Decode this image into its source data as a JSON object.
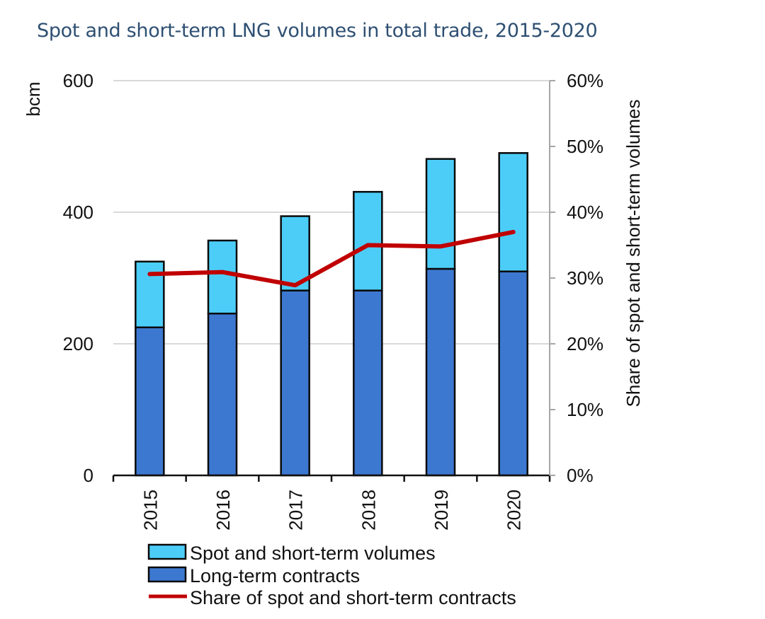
{
  "chart_data": {
    "type": "bar",
    "title": "Spot and short-term LNG volumes in total trade, 2015-2020",
    "categories": [
      "2015",
      "2016",
      "2017",
      "2018",
      "2019",
      "2020"
    ],
    "series": [
      {
        "name": "Long-term contracts",
        "kind": "stacked-bar",
        "axis": "left",
        "color": "#3d78d0",
        "values": [
          225,
          246,
          281,
          281,
          314,
          310
        ]
      },
      {
        "name": "Spot and short-term volumes",
        "kind": "stacked-bar",
        "axis": "left",
        "color": "#4ccdf8",
        "values": [
          100,
          111,
          113,
          150,
          167,
          180
        ]
      },
      {
        "name": "Share of spot and short-term contracts",
        "kind": "line",
        "axis": "right",
        "color": "#c00000",
        "values": [
          30.6,
          30.9,
          28.9,
          35.0,
          34.8,
          37.0
        ]
      }
    ],
    "left_axis": {
      "label": "bcm",
      "ylim": [
        0,
        600
      ],
      "ticks": [
        "0",
        "200",
        "400",
        "600"
      ],
      "tick_values": [
        0,
        200,
        400,
        600
      ]
    },
    "right_axis": {
      "label": "Share of spot and short-term volumes",
      "ylim": [
        0,
        60
      ],
      "ticks": [
        "0%",
        "10%",
        "20%",
        "30%",
        "40%",
        "50%",
        "60%"
      ],
      "tick_values": [
        0,
        10,
        20,
        30,
        40,
        50,
        60
      ]
    },
    "grid": true,
    "legend": {
      "placement": "bottom",
      "entries": [
        {
          "label": "Spot and short-term volumes",
          "type": "box",
          "color": "#4ccdf8"
        },
        {
          "label": "Long-term contracts",
          "type": "box",
          "color": "#3d78d0"
        },
        {
          "label": "Share of spot and short-term contracts",
          "type": "line",
          "color": "#c00000"
        }
      ]
    },
    "colors": {
      "title": "#2e4f72",
      "grid": "#d9d9d9",
      "bar_outline": "#0a0a0a"
    }
  }
}
